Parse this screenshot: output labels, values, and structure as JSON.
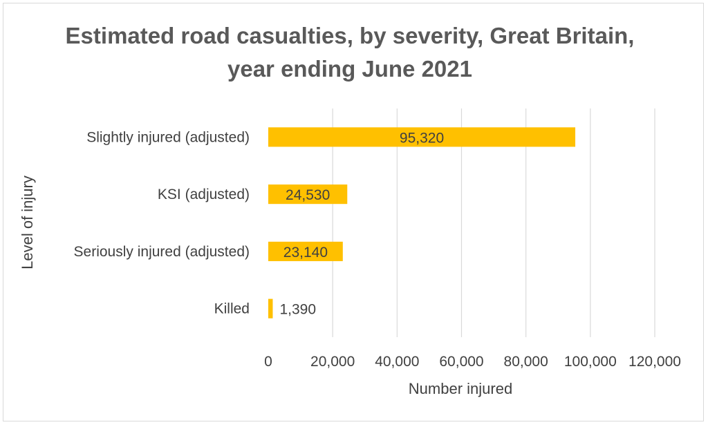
{
  "chart_data": {
    "type": "bar",
    "orientation": "horizontal",
    "title": "Estimated road casualties, by severity, Great Britain, year ending June 2021",
    "xlabel": "Number injured",
    "ylabel": "Level of injury",
    "categories": [
      "Slightly injured (adjusted)",
      "KSI (adjusted)",
      "Seriously injured (adjusted)",
      "Killed"
    ],
    "values": [
      95320,
      24530,
      23140,
      1390
    ],
    "data_labels": [
      "95,320",
      "24,530",
      "23,140",
      "1,390"
    ],
    "xlim": [
      0,
      120000
    ],
    "x_ticks": [
      0,
      20000,
      40000,
      60000,
      80000,
      100000,
      120000
    ],
    "x_tick_labels": [
      "0",
      "20,000",
      "40,000",
      "60,000",
      "80,000",
      "100,000",
      "120,000"
    ],
    "grid": true,
    "legend": "none",
    "bar_color": "#ffc000",
    "grid_color": "#d9d9d9",
    "text_color": "#404040"
  }
}
